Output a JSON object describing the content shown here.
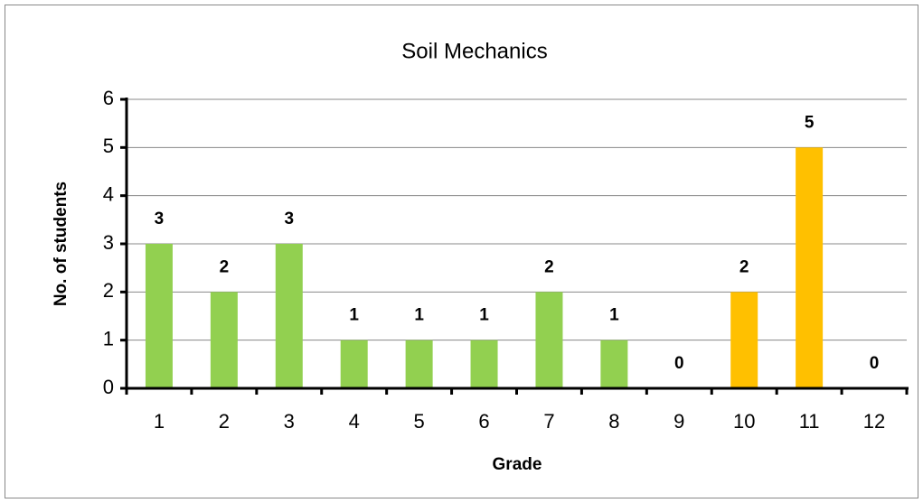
{
  "chart_data": {
    "type": "bar",
    "title": "Soil Mechanics",
    "x_label": "Grade",
    "y_label": "No. of students",
    "categories": [
      "1",
      "2",
      "3",
      "4",
      "5",
      "6",
      "7",
      "8",
      "9",
      "10",
      "11",
      "12"
    ],
    "values": [
      3,
      2,
      3,
      1,
      1,
      1,
      2,
      1,
      0,
      2,
      5,
      0
    ],
    "colors": [
      "#92d050",
      "#92d050",
      "#92d050",
      "#92d050",
      "#92d050",
      "#92d050",
      "#92d050",
      "#92d050",
      "#92d050",
      "#ffc000",
      "#ffc000",
      "#ffc000"
    ],
    "ylim": [
      0,
      6
    ],
    "yticks": [
      0,
      1,
      2,
      3,
      4,
      5,
      6
    ],
    "grid": true
  }
}
